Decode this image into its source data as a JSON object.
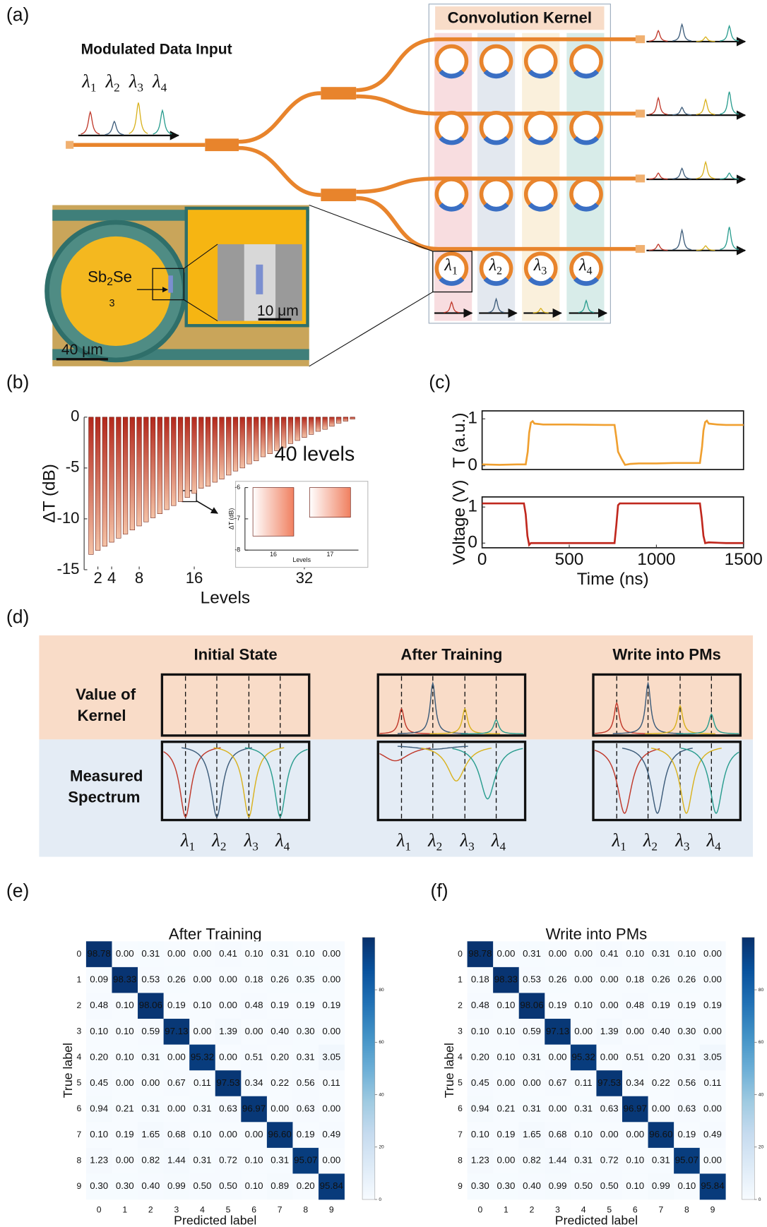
{
  "panel_labels": [
    "(a)",
    "(b)",
    "(c)",
    "(d)",
    "(e)",
    "(f)"
  ],
  "diagram_a": {
    "input_title": "Modulated Data Input",
    "kernel_title": "Convolution Kernel",
    "wavelengths": [
      {
        "symbol": "λ",
        "sub": "1"
      },
      {
        "symbol": "λ",
        "sub": "2"
      },
      {
        "symbol": "λ",
        "sub": "3"
      },
      {
        "symbol": "λ",
        "sub": "4"
      }
    ],
    "material": [
      "Sb",
      "2",
      "Se",
      "3"
    ],
    "inset_scale": "10 μm",
    "image_scale": "40 μm"
  },
  "diagram_d": {
    "columns": [
      "Initial State",
      "After Training",
      "Write into PMs"
    ],
    "rows": [
      [
        "Value of",
        "Kernel"
      ],
      [
        "Measured",
        "Spectrum"
      ]
    ]
  },
  "chart_data": [
    {
      "type": "bar",
      "annotation": "40 levels",
      "x": [
        1,
        2,
        3,
        4,
        5,
        6,
        7,
        8,
        9,
        10,
        11,
        12,
        13,
        14,
        15,
        16,
        17,
        18,
        19,
        20,
        21,
        22,
        23,
        24,
        25,
        26,
        27,
        28,
        29,
        30,
        31,
        32,
        33,
        34,
        35,
        36,
        37,
        38,
        39,
        40
      ],
      "values": [
        -13.5,
        -13.1,
        -12.7,
        -12.3,
        -11.9,
        -11.5,
        -11.1,
        -10.7,
        -10.3,
        -9.9,
        -9.5,
        -9.1,
        -8.7,
        -8.3,
        -7.9,
        -7.5,
        -7.0,
        -6.8,
        -6.4,
        -6.1,
        -5.7,
        -5.3,
        -5.0,
        -4.6,
        -4.3,
        -3.9,
        -3.6,
        -3.3,
        -3.0,
        -2.6,
        -2.3,
        -2.0,
        -1.7,
        -1.4,
        -1.2,
        -0.9,
        -0.6,
        -0.4,
        -0.2,
        0
      ],
      "xlim": [
        0,
        41
      ],
      "xticks": [
        2,
        4,
        8,
        16,
        32
      ],
      "ylim": [
        -15,
        0
      ],
      "yticks": [
        -15,
        -10,
        -5,
        0
      ],
      "xlabel": "Levels",
      "ylabel": "ΔT (dB)",
      "gradient": [
        "#b3271b",
        "#f4c2a6"
      ]
    },
    {
      "type": "bar",
      "categories": [
        "16",
        "17"
      ],
      "values": [
        -7.55,
        -6.95
      ],
      "ylim": [
        -8,
        -6
      ],
      "yticks": [
        -8,
        -7,
        -6
      ],
      "xlabel": "Levels",
      "ylabel": "ΔT (dB)",
      "gradient": [
        "#ffffff",
        "#f08060"
      ]
    },
    {
      "type": "line",
      "x": [
        0,
        100,
        200,
        250,
        262,
        270,
        280,
        290,
        300,
        350,
        500,
        700,
        760,
        770,
        780,
        800,
        820,
        850,
        900,
        1000,
        1100,
        1200,
        1250,
        1262,
        1270,
        1280,
        1290,
        1300,
        1350,
        1400,
        1500
      ],
      "values": [
        0.03,
        0.02,
        0.03,
        0.03,
        0.3,
        0.7,
        0.92,
        0.95,
        0.9,
        0.88,
        0.88,
        0.87,
        0.87,
        0.6,
        0.3,
        0.15,
        0.02,
        0.04,
        0.05,
        0.05,
        0.06,
        0.06,
        0.06,
        0.4,
        0.75,
        0.93,
        0.96,
        0.9,
        0.88,
        0.87,
        0.87
      ],
      "xlim": [
        0,
        1500
      ],
      "ylim": [
        -0.08,
        1.17
      ],
      "yticks": [
        0,
        1
      ],
      "ylabel": "T (a.u.)",
      "color": "#f0a030"
    },
    {
      "type": "line",
      "x": [
        0,
        100,
        240,
        250,
        260,
        270,
        280,
        300,
        400,
        600,
        760,
        770,
        780,
        790,
        900,
        1100,
        1250,
        1260,
        1270,
        1280,
        1300,
        1400,
        1500
      ],
      "values": [
        1.1,
        1.1,
        1.1,
        0.8,
        0.2,
        -0.05,
        0.0,
        0.0,
        0.0,
        0.0,
        0.0,
        0.5,
        1.05,
        1.1,
        1.1,
        1.1,
        1.1,
        0.7,
        0.2,
        0.0,
        0.02,
        0.0,
        0.0
      ],
      "xlim": [
        0,
        1500
      ],
      "xticks": [
        0,
        500,
        1000,
        1500
      ],
      "ylim": [
        -0.13,
        1.28
      ],
      "yticks": [
        0,
        1
      ],
      "xlabel": "Time (ns)",
      "ylabel": "Voltage (V)",
      "color": "#c0281e"
    },
    {
      "type": "heatmap",
      "title": "After Training",
      "categories": [
        "0",
        "1",
        "2",
        "3",
        "4",
        "5",
        "6",
        "7",
        "8",
        "9"
      ],
      "xlabel": "Predicted label",
      "ylabel": "True label",
      "values": [
        [
          98.78,
          0,
          0.31,
          0,
          0,
          0.41,
          0.1,
          0.31,
          0.1,
          0
        ],
        [
          0.09,
          98.33,
          0.53,
          0.26,
          0,
          0,
          0.18,
          0.26,
          0.35,
          0
        ],
        [
          0.48,
          0.1,
          98.06,
          0.19,
          0.1,
          0,
          0.48,
          0.19,
          0.19,
          0.19
        ],
        [
          0.1,
          0.1,
          0.59,
          97.13,
          0,
          1.39,
          0,
          0.4,
          0.3,
          0
        ],
        [
          0.2,
          0.1,
          0.31,
          0,
          95.32,
          0,
          0.51,
          0.2,
          0.31,
          3.05
        ],
        [
          0.45,
          0,
          0,
          0.67,
          0.11,
          97.53,
          0.34,
          0.22,
          0.56,
          0.11
        ],
        [
          0.94,
          0.21,
          0.31,
          0,
          0.31,
          0.63,
          96.97,
          0,
          0.63,
          0
        ],
        [
          0.1,
          0.19,
          1.65,
          0.68,
          0.1,
          0,
          0,
          96.6,
          0.19,
          0.49
        ],
        [
          1.23,
          0,
          0.82,
          1.44,
          0.31,
          0.72,
          0.1,
          0.31,
          95.07,
          0
        ],
        [
          0.3,
          0.3,
          0.4,
          0.99,
          0.5,
          0.5,
          0.1,
          0.89,
          0.2,
          95.84
        ]
      ],
      "value_labels": [
        [
          "98.78",
          "0.00",
          "0.31",
          "0.00",
          "0.00",
          "0.41",
          "0.10",
          "0.31",
          "0.10",
          "0.00"
        ],
        [
          "0.09",
          "98.33",
          "0.53",
          "0.26",
          "0.00",
          "0.00",
          "0.18",
          "0.26",
          "0.35",
          "0.00"
        ],
        [
          "0.48",
          "0.10",
          "98.06",
          "0.19",
          "0.10",
          "0.00",
          "0.48",
          "0.19",
          "0.19",
          "0.19"
        ],
        [
          "0.10",
          "0.10",
          "0.59",
          "97.13",
          "0.00",
          "1.39",
          "0.00",
          "0.40",
          "0.30",
          "0.00"
        ],
        [
          "0.20",
          "0.10",
          "0.31",
          "0.00",
          "95.32",
          "0.00",
          "0.51",
          "0.20",
          "0.31",
          "3.05"
        ],
        [
          "0.45",
          "0.00",
          "0.00",
          "0.67",
          "0.11",
          "97.53",
          "0.34",
          "0.22",
          "0.56",
          "0.11"
        ],
        [
          "0.94",
          "0.21",
          "0.31",
          "0.00",
          "0.31",
          "0.63",
          "96.97",
          "0.00",
          "0.63",
          "0.00"
        ],
        [
          "0.10",
          "0.19",
          "1.65",
          "0.68",
          "0.10",
          "0.00",
          "0.00",
          "96.60",
          "0.19",
          "0.49"
        ],
        [
          "1.23",
          "0.00",
          "0.82",
          "1.44",
          "0.31",
          "0.72",
          "0.10",
          "0.31",
          "95.07",
          "0.00"
        ],
        [
          "0.30",
          "0.30",
          "0.40",
          "0.99",
          "0.50",
          "0.50",
          "0.10",
          "0.89",
          "0.20",
          "95.84"
        ]
      ],
      "colorbar": {
        "lim": [
          0,
          100
        ],
        "ticks": [
          0,
          20,
          40,
          60,
          80
        ]
      },
      "colormap": [
        "#f7fbff",
        "#deebf7",
        "#c6dbef",
        "#9ecae1",
        "#6baed6",
        "#4292c6",
        "#2171b5",
        "#08519c",
        "#08306b"
      ]
    },
    {
      "type": "heatmap",
      "title": "Write into PMs",
      "categories": [
        "0",
        "1",
        "2",
        "3",
        "4",
        "5",
        "6",
        "7",
        "8",
        "9"
      ],
      "xlabel": "Predicted label",
      "ylabel": "True label",
      "values": [
        [
          98.78,
          0,
          0.31,
          0,
          0,
          0.41,
          0.1,
          0.31,
          0.1,
          0
        ],
        [
          0.18,
          98.33,
          0.53,
          0.26,
          0,
          0,
          0.18,
          0.26,
          0.26,
          0
        ],
        [
          0.48,
          0.1,
          98.06,
          0.19,
          0.1,
          0,
          0.48,
          0.19,
          0.19,
          0.19
        ],
        [
          0.1,
          0.1,
          0.59,
          97.13,
          0,
          1.39,
          0,
          0.4,
          0.3,
          0
        ],
        [
          0.2,
          0.1,
          0.31,
          0,
          95.32,
          0,
          0.51,
          0.2,
          0.31,
          3.05
        ],
        [
          0.45,
          0,
          0,
          0.67,
          0.11,
          97.53,
          0.34,
          0.22,
          0.56,
          0.11
        ],
        [
          0.94,
          0.21,
          0.31,
          0,
          0.31,
          0.63,
          96.97,
          0,
          0.63,
          0
        ],
        [
          0.1,
          0.19,
          1.65,
          0.68,
          0.1,
          0,
          0,
          96.6,
          0.19,
          0.49
        ],
        [
          1.23,
          0,
          0.82,
          1.44,
          0.31,
          0.72,
          0.1,
          0.31,
          95.07,
          0
        ],
        [
          0.3,
          0.3,
          0.4,
          0.99,
          0.5,
          0.5,
          0.1,
          0.99,
          0.1,
          95.84
        ]
      ],
      "value_labels": [
        [
          "98.78",
          "0.00",
          "0.31",
          "0.00",
          "0.00",
          "0.41",
          "0.10",
          "0.31",
          "0.10",
          "0.00"
        ],
        [
          "0.18",
          "98.33",
          "0.53",
          "0.26",
          "0.00",
          "0.00",
          "0.18",
          "0.26",
          "0.26",
          "0.00"
        ],
        [
          "0.48",
          "0.10",
          "98.06",
          "0.19",
          "0.10",
          "0.00",
          "0.48",
          "0.19",
          "0.19",
          "0.19"
        ],
        [
          "0.10",
          "0.10",
          "0.59",
          "97.13",
          "0.00",
          "1.39",
          "0.00",
          "0.40",
          "0.30",
          "0.00"
        ],
        [
          "0.20",
          "0.10",
          "0.31",
          "0.00",
          "95.32",
          "0.00",
          "0.51",
          "0.20",
          "0.31",
          "3.05"
        ],
        [
          "0.45",
          "0.00",
          "0.00",
          "0.67",
          "0.11",
          "97.53",
          "0.34",
          "0.22",
          "0.56",
          "0.11"
        ],
        [
          "0.94",
          "0.21",
          "0.31",
          "0.00",
          "0.31",
          "0.63",
          "96.97",
          "0.00",
          "0.63",
          "0.00"
        ],
        [
          "0.10",
          "0.19",
          "1.65",
          "0.68",
          "0.10",
          "0.00",
          "0.00",
          "96.60",
          "0.19",
          "0.49"
        ],
        [
          "1.23",
          "0.00",
          "0.82",
          "1.44",
          "0.31",
          "0.72",
          "0.10",
          "0.31",
          "95.07",
          "0.00"
        ],
        [
          "0.30",
          "0.30",
          "0.40",
          "0.99",
          "0.50",
          "0.50",
          "0.10",
          "0.99",
          "0.10",
          "95.84"
        ]
      ],
      "colorbar": {
        "lim": [
          0,
          100
        ],
        "ticks": [
          0,
          20,
          40,
          60,
          80
        ]
      },
      "colormap": [
        "#f7fbff",
        "#deebf7",
        "#c6dbef",
        "#9ecae1",
        "#6baed6",
        "#4292c6",
        "#2171b5",
        "#08519c",
        "#08306b"
      ]
    }
  ]
}
